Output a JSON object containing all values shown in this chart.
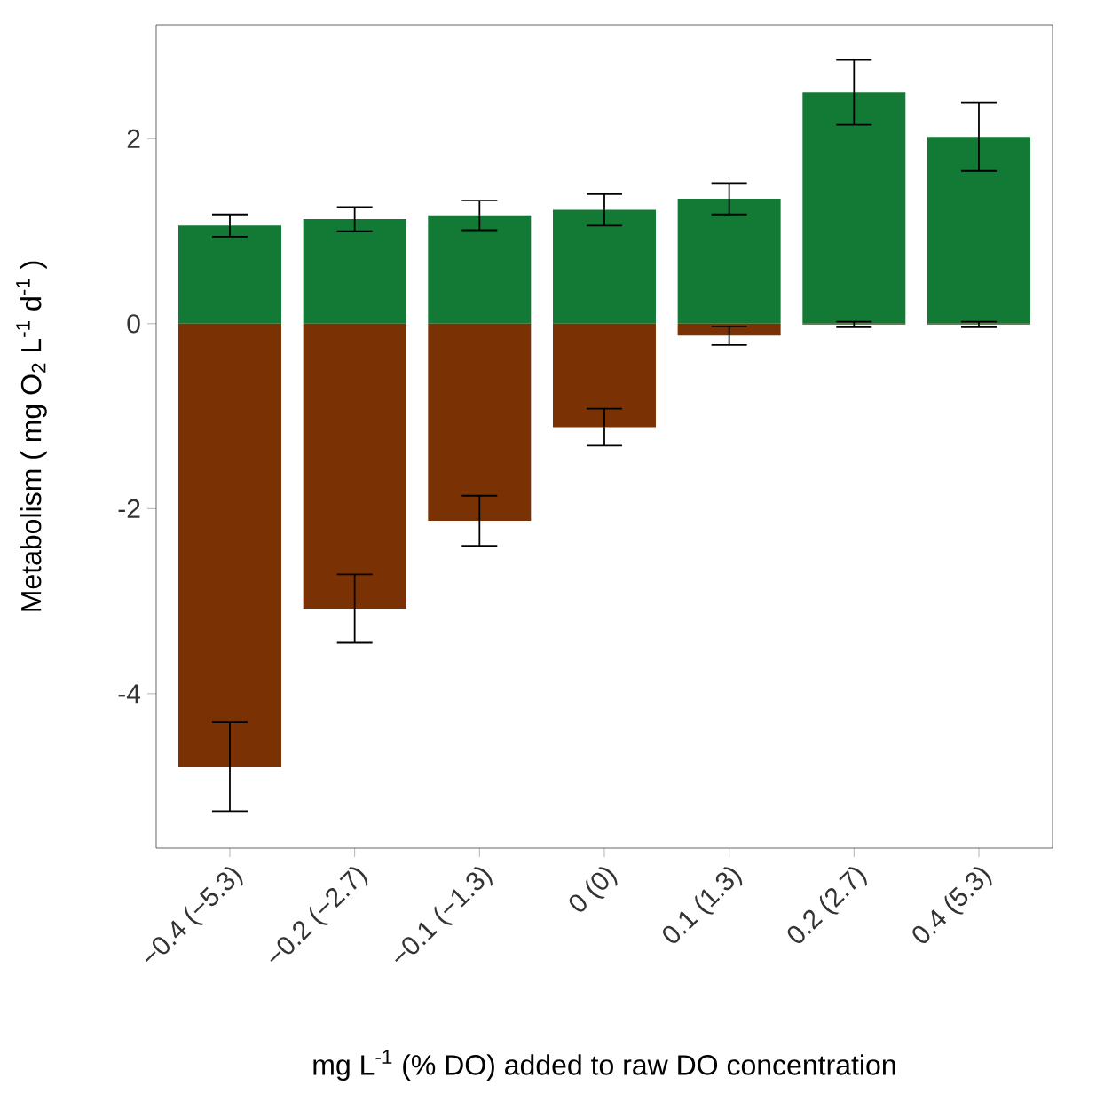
{
  "chart_data": {
    "type": "bar",
    "stacked": true,
    "xlabel": "mg L$^{-1}$ (% DO) added to raw DO concentration",
    "ylabel": "Metabolism ( mg  O$_{2}$ L$^{-1}$ d$^{-1}$ )",
    "categories": [
      "−0.4 (−5.3)",
      "−0.2 (−2.7)",
      "−0.1 (−1.3)",
      "0 (0)",
      "0.1 (1.3)",
      "0.2 (2.7)",
      "0.4 (5.3)"
    ],
    "ylim": [
      -5.67,
      3.23
    ],
    "yticks": [
      -4,
      -2,
      0,
      2
    ],
    "series": [
      {
        "color": "#137a36",
        "values": [
          1.06,
          1.13,
          1.17,
          1.23,
          1.35,
          2.5,
          2.02
        ],
        "errors": [
          0.12,
          0.13,
          0.16,
          0.17,
          0.17,
          0.35,
          0.37
        ]
      },
      {
        "color": "#7a3205",
        "values": [
          -4.79,
          -3.08,
          -2.13,
          -1.12,
          -0.13,
          -0.01,
          -0.01
        ],
        "errors": [
          0.48,
          0.37,
          0.27,
          0.2,
          0.1,
          0.03,
          0.03
        ]
      }
    ]
  }
}
